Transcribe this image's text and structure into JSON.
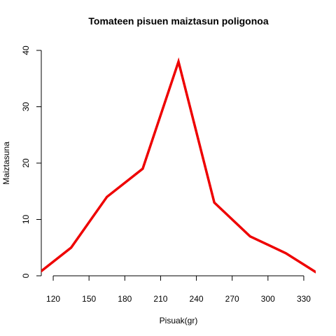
{
  "chart_data": {
    "type": "line",
    "title": "Tomateen pisuen maiztasun poligonoa",
    "xlabel": "Pisuak(gr)",
    "ylabel": "Maiztasuna",
    "xlim": [
      110,
      340
    ],
    "ylim": [
      0,
      40
    ],
    "xticks": [
      120,
      150,
      180,
      210,
      240,
      270,
      300,
      330
    ],
    "yticks": [
      0,
      10,
      20,
      30,
      40
    ],
    "grid": false,
    "series": [
      {
        "color": "#ee0000",
        "x": [
          105,
          135,
          165,
          195,
          225,
          255,
          285,
          315,
          345
        ],
        "y": [
          0,
          5,
          14,
          19,
          38,
          13,
          7,
          4,
          0
        ]
      }
    ]
  }
}
